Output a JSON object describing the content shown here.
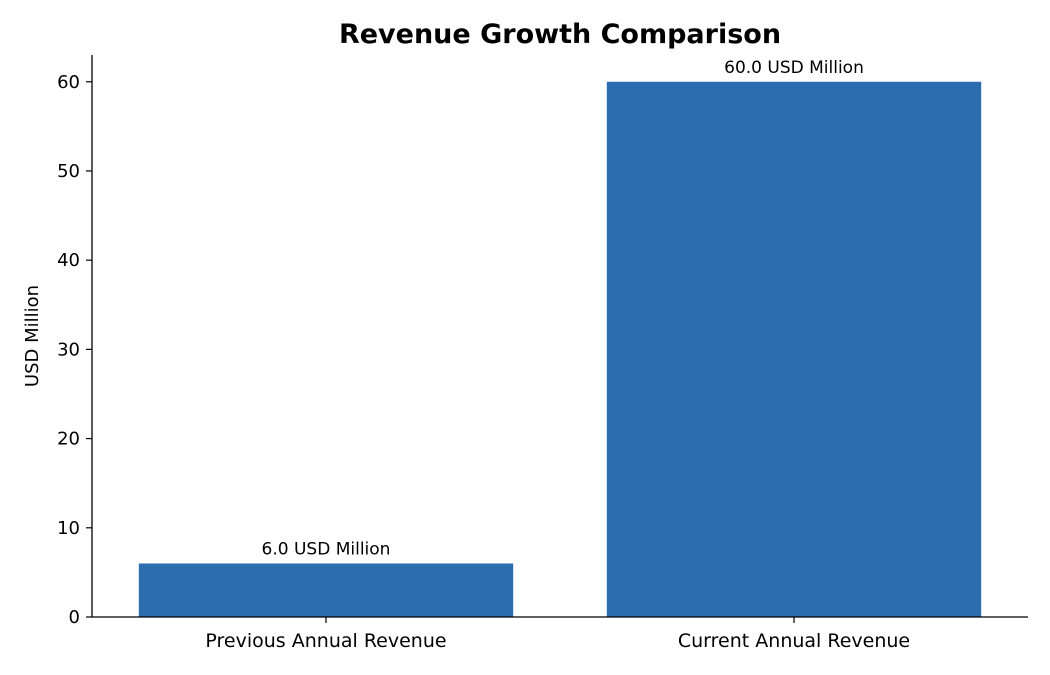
{
  "chart_data": {
    "type": "bar",
    "title": "Revenue Growth Comparison",
    "xlabel": "",
    "ylabel": "USD Million",
    "categories": [
      "Previous Annual Revenue",
      "Current Annual Revenue"
    ],
    "values": [
      6.0,
      60.0
    ],
    "data_labels": [
      "6.0 USD Million",
      "60.0 USD Million"
    ],
    "ylim": [
      0,
      63
    ],
    "yticks": [
      0,
      10,
      20,
      30,
      40,
      50,
      60
    ],
    "grid": false,
    "legend": "none",
    "colors": {
      "bar": "#2c6db0"
    }
  }
}
